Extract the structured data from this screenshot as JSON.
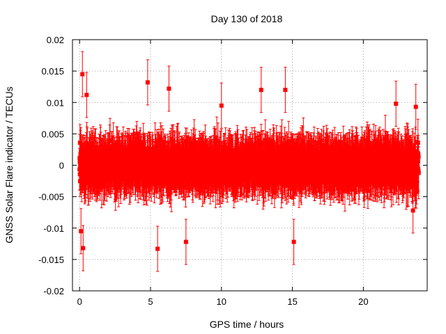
{
  "chart_data": {
    "type": "scatter",
    "title": "Day 130 of 2018",
    "xlabel": "GPS time / hours",
    "ylabel": "GNSS Solar Flare indicator / TECUs",
    "xlim": [
      -0.5,
      24.5
    ],
    "ylim": [
      -0.02,
      0.02
    ],
    "xticks": [
      0,
      5,
      10,
      15,
      20
    ],
    "yticks": [
      -0.02,
      -0.015,
      -0.01,
      -0.005,
      0,
      0.005,
      0.01,
      0.015,
      0.02
    ],
    "xtick_labels": [
      "0",
      "5",
      "10",
      "15",
      "20"
    ],
    "ytick_labels": [
      "-0.02",
      "-0.015",
      "-0.01",
      "-0.005",
      "0",
      "0.005",
      "0.01",
      "0.015",
      "0.02"
    ],
    "grid": true,
    "series": [
      {
        "color": "#ff0000",
        "marker": "square",
        "error_bars": true,
        "x_range": [
          0,
          23.9
        ],
        "typical_y_range": [
          -0.006,
          0.006
        ],
        "typical_error": 0.003,
        "notable_points": [
          {
            "x": 0.2,
            "y": 0.0145
          },
          {
            "x": 0.25,
            "y": -0.0132
          },
          {
            "x": 0.1,
            "y": -0.0105
          },
          {
            "x": 0.5,
            "y": 0.0112
          },
          {
            "x": 4.8,
            "y": 0.0132
          },
          {
            "x": 5.5,
            "y": -0.0133
          },
          {
            "x": 6.3,
            "y": 0.0122
          },
          {
            "x": 7.5,
            "y": -0.0122
          },
          {
            "x": 10.0,
            "y": 0.0095
          },
          {
            "x": 12.8,
            "y": 0.012
          },
          {
            "x": 14.5,
            "y": 0.012
          },
          {
            "x": 15.1,
            "y": -0.0122
          },
          {
            "x": 22.3,
            "y": 0.0098
          },
          {
            "x": 23.7,
            "y": 0.0093
          },
          {
            "x": 23.5,
            "y": -0.0072
          }
        ]
      }
    ]
  }
}
